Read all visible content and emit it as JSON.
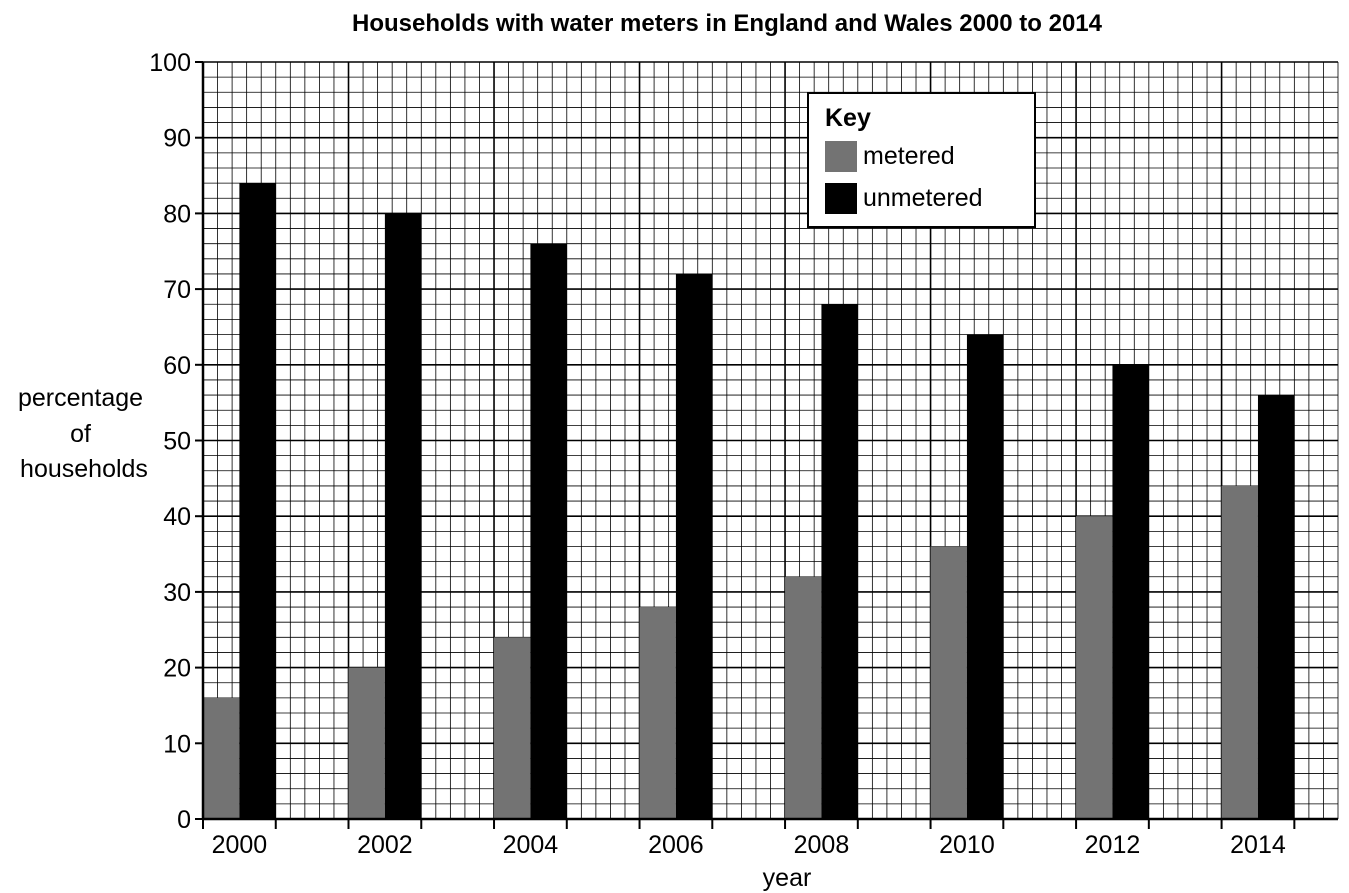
{
  "chart_data": {
    "type": "bar",
    "title": "Households with water meters in England and Wales 2000 to 2014",
    "xlabel": "year",
    "ylabel_lines": [
      "percentage",
      "of",
      "households"
    ],
    "categories": [
      "2000",
      "2002",
      "2004",
      "2006",
      "2008",
      "2010",
      "2012",
      "2014"
    ],
    "series": [
      {
        "name": "metered",
        "color": "#737373",
        "values": [
          16,
          20,
          24,
          28,
          32,
          36,
          40,
          44
        ]
      },
      {
        "name": "unmetered",
        "color": "#000000",
        "values": [
          84,
          80,
          76,
          72,
          68,
          64,
          60,
          56
        ]
      }
    ],
    "ylim": [
      0,
      100
    ],
    "yticks": [
      "0",
      "10",
      "20",
      "30",
      "40",
      "50",
      "60",
      "70",
      "80",
      "90",
      "100"
    ],
    "grid": "on",
    "legend": {
      "title": "Key",
      "placement": "top-right"
    }
  }
}
